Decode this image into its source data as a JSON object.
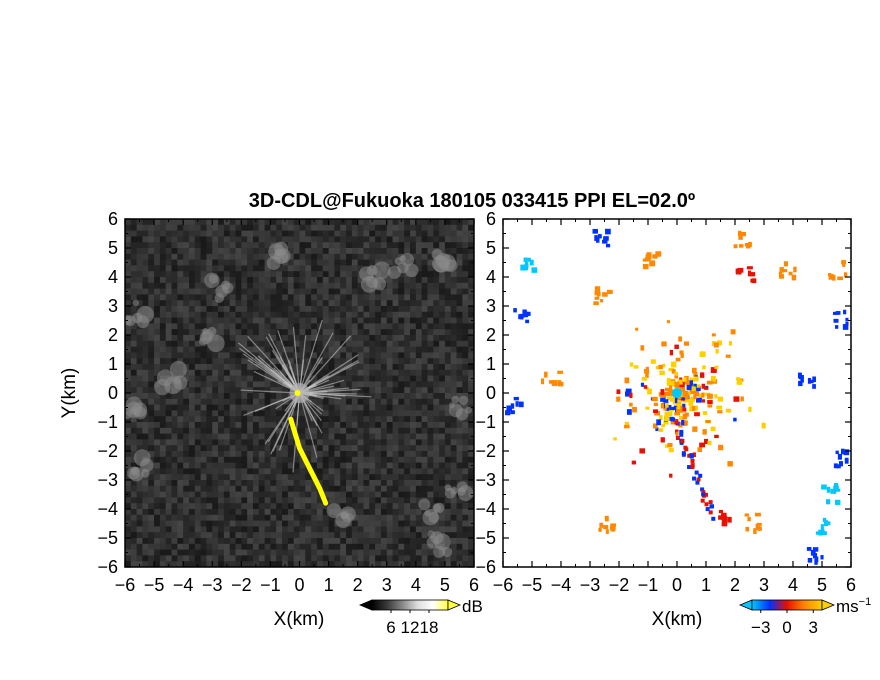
{
  "chart_data": {
    "title": "3D-CDL@Fukuoka 180105 033415 PPI EL=02.0º",
    "type": "heatmap",
    "panels": [
      {
        "name": "snr",
        "xlabel": "X(km)",
        "ylabel": "Y(km)",
        "xlim": [
          -6,
          6
        ],
        "ylim": [
          -6,
          6
        ],
        "xticks": [
          "−6",
          "−5",
          "−4",
          "−3",
          "−2",
          "−1",
          "0",
          "1",
          "2",
          "3",
          "4",
          "5",
          "6"
        ],
        "yticks": [
          "−6",
          "−5",
          "−4",
          "−3",
          "−2",
          "−1",
          "0",
          "1",
          "2",
          "3",
          "4",
          "5",
          "6"
        ],
        "colorbar": {
          "unit": "dB",
          "ticks": [
            "6",
            "12",
            "18"
          ],
          "range": [
            0,
            24
          ]
        },
        "background_color": "#2a2a2a",
        "feature_color": "#ffff00",
        "feature_track": [
          [
            -0.3,
            -0.9
          ],
          [
            -0.15,
            -1.4
          ],
          [
            0.0,
            -1.9
          ],
          [
            0.2,
            -2.3
          ],
          [
            0.45,
            -2.8
          ],
          [
            0.7,
            -3.3
          ],
          [
            0.9,
            -3.8
          ]
        ]
      },
      {
        "name": "doppler",
        "xlabel": "X(km)",
        "xlim": [
          -6,
          6
        ],
        "ylim": [
          -6,
          6
        ],
        "xticks": [
          "−6",
          "−5",
          "−4",
          "−3",
          "−2",
          "−1",
          "0",
          "1",
          "2",
          "3",
          "4",
          "5",
          "6"
        ],
        "yticks": [
          "−6",
          "−5",
          "−4",
          "−3",
          "−2",
          "−1",
          "0",
          "1",
          "2",
          "3",
          "4",
          "5",
          "6"
        ],
        "colorbar": {
          "unit": "ms",
          "unit_sup": "−1",
          "ticks": [
            "−3",
            "0",
            "3"
          ],
          "range": [
            -4,
            4
          ]
        },
        "colors": {
          "neg_strong": "#00c8ff",
          "neg": "#0032ff",
          "pos": "#ff8800",
          "pos_weak": "#ffd000",
          "pos_strong": "#e81000"
        }
      }
    ]
  }
}
